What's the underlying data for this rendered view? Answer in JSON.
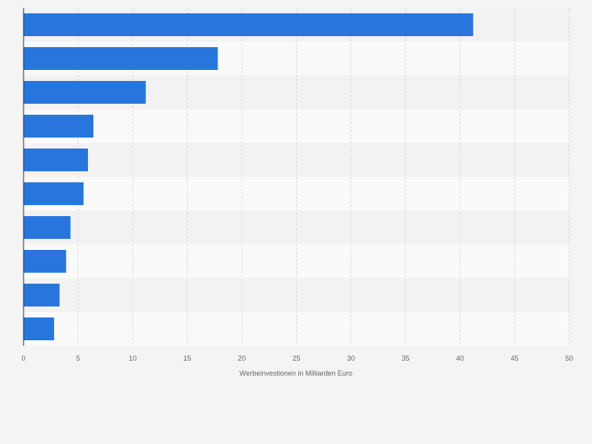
{
  "chart_data": {
    "type": "bar",
    "orientation": "horizontal",
    "categories": [
      "",
      "",
      "",
      "",
      "",
      "",
      "",
      "",
      "",
      ""
    ],
    "values": [
      41.2,
      17.8,
      11.2,
      6.4,
      5.9,
      5.5,
      4.3,
      3.9,
      3.3,
      2.8
    ],
    "xlabel": "Werbeinvestionen in Milliarden Euro",
    "ylabel": "",
    "xlim": [
      0,
      50
    ],
    "xticks": [
      "0",
      "5",
      "10",
      "15",
      "20",
      "25",
      "30",
      "35",
      "40",
      "45",
      "50"
    ],
    "grid": true,
    "colors": {
      "bar": "#2876dd",
      "band_light": "#fafafa",
      "band_dark": "#f2f2f2",
      "grid": "#dadada",
      "axis": "#333333",
      "label": "#666666",
      "background": "#f4f4f4"
    }
  }
}
